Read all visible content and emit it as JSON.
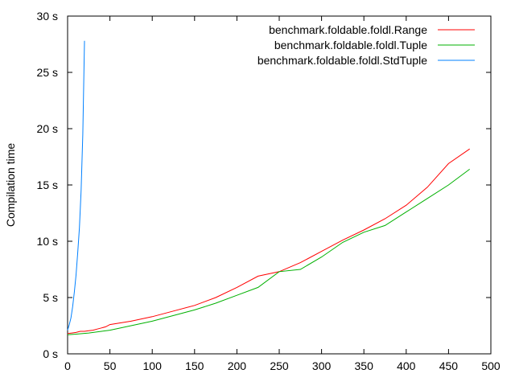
{
  "chart_data": {
    "type": "line",
    "title": "",
    "xlabel": "",
    "ylabel": "Compilation time",
    "xlim": [
      0,
      500
    ],
    "ylim": [
      0,
      30
    ],
    "x_ticks": [
      "0",
      "50",
      "100",
      "150",
      "200",
      "250",
      "300",
      "350",
      "400",
      "450",
      "500"
    ],
    "y_ticks": [
      "0 s",
      "5 s",
      "10 s",
      "15 s",
      "20 s",
      "25 s",
      "30 s"
    ],
    "grid": false,
    "legend_position": "top-right",
    "series": [
      {
        "name": "benchmark.foldable.foldl.Range",
        "color": "#ff0000",
        "x": [
          0,
          5,
          10,
          15,
          20,
          25,
          30,
          35,
          40,
          45,
          50,
          75,
          100,
          125,
          150,
          175,
          200,
          225,
          250,
          275,
          300,
          325,
          350,
          375,
          400,
          425,
          450,
          475
        ],
        "y": [
          1.8,
          1.85,
          1.9,
          2.0,
          2.0,
          2.05,
          2.1,
          2.2,
          2.3,
          2.4,
          2.6,
          2.9,
          3.3,
          3.8,
          4.3,
          5.0,
          5.9,
          6.9,
          7.3,
          8.1,
          9.1,
          10.1,
          11.0,
          12.0,
          13.2,
          14.8,
          16.9,
          18.2
        ]
      },
      {
        "name": "benchmark.foldable.foldl.Tuple",
        "color": "#00b000",
        "x": [
          0,
          10,
          25,
          50,
          75,
          100,
          125,
          150,
          175,
          200,
          225,
          250,
          275,
          300,
          325,
          350,
          375,
          400,
          425,
          450,
          475
        ],
        "y": [
          1.7,
          1.75,
          1.85,
          2.1,
          2.5,
          2.9,
          3.4,
          3.9,
          4.5,
          5.2,
          5.9,
          7.3,
          7.5,
          8.6,
          9.9,
          10.8,
          11.4,
          12.6,
          13.8,
          15.0,
          16.4
        ]
      },
      {
        "name": "benchmark.foldable.foldl.StdTuple",
        "color": "#0080ff",
        "x": [
          0,
          2,
          4,
          6,
          8,
          10,
          12,
          14,
          16,
          18,
          20
        ],
        "y": [
          2.1,
          2.6,
          3.2,
          4.2,
          5.5,
          7.0,
          9.0,
          11.2,
          14.5,
          19.5,
          27.8
        ]
      }
    ]
  }
}
